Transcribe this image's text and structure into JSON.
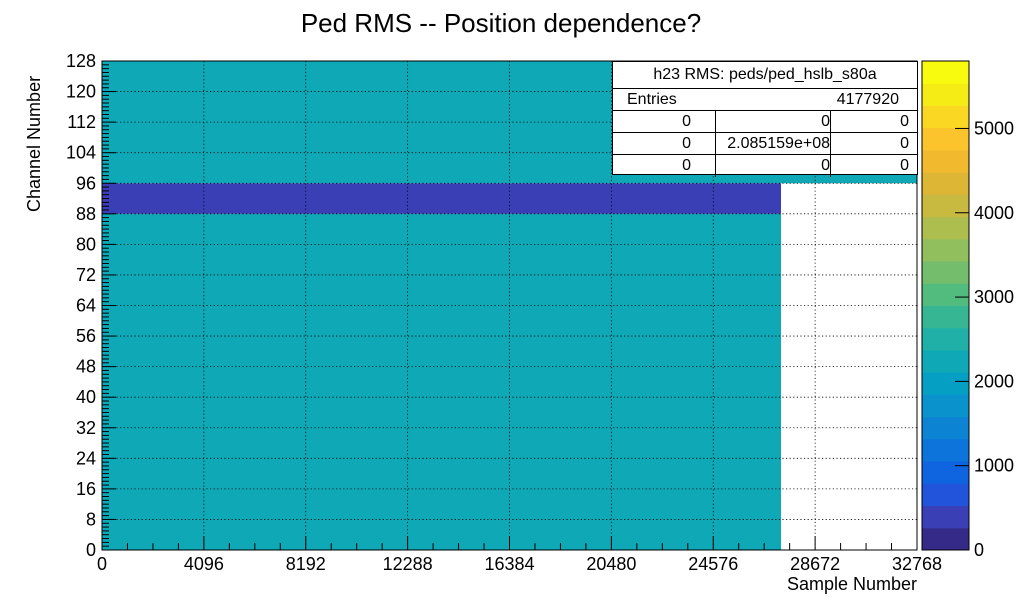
{
  "chart_data": {
    "type": "heatmap",
    "title": "Ped RMS -- Position dependence?",
    "xlabel": "Sample Number",
    "ylabel": "Channel Number",
    "xlim": [
      0,
      32768
    ],
    "ylim": [
      0,
      128
    ],
    "x_ticks": [
      "0",
      "4096",
      "8192",
      "12288",
      "16384",
      "20480",
      "24576",
      "28672",
      "32768"
    ],
    "y_ticks": [
      "0",
      "8",
      "16",
      "24",
      "32",
      "40",
      "48",
      "56",
      "64",
      "72",
      "80",
      "88",
      "96",
      "104",
      "112",
      "120",
      "128"
    ],
    "z_ticks": [
      "0",
      "1000",
      "2000",
      "3000",
      "4000",
      "5000"
    ],
    "zlim": [
      0,
      5800
    ],
    "grid": true,
    "regions": [
      {
        "x_range": [
          0,
          27300
        ],
        "y_range": [
          0,
          88
        ],
        "z_level": 2150
      },
      {
        "x_range": [
          0,
          27300
        ],
        "y_range": [
          88,
          96
        ],
        "z_level": 300
      },
      {
        "x_range": [
          0,
          32768
        ],
        "y_range": [
          96,
          128
        ],
        "z_level": 2150
      }
    ],
    "stats_box": {
      "title": "h23 RMS: peds/ped_hslb_s80a",
      "entries_label": "Entries",
      "entries_value": "4177920",
      "grid": [
        [
          "0",
          "0",
          "0"
        ],
        [
          "0",
          "2.085159e+08",
          "0"
        ],
        [
          "0",
          "0",
          "0"
        ]
      ]
    }
  }
}
